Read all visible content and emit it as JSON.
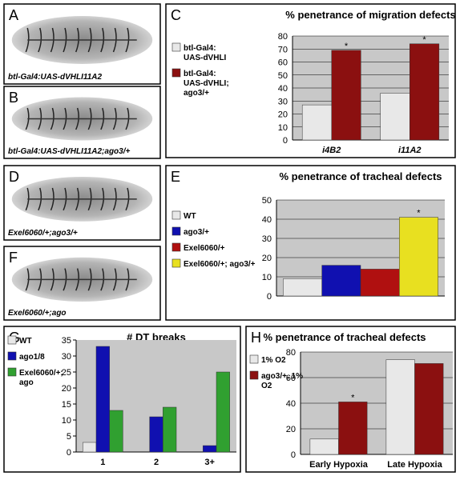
{
  "image_panels": [
    {
      "letter": "A",
      "caption": "btl-Gal4:UAS-dVHLI11A2"
    },
    {
      "letter": "B",
      "caption": "btl-Gal4:UAS-dVHLI11A2;ago3/+"
    },
    {
      "letter": "D",
      "caption": "Exel6060/+;ago3/+"
    },
    {
      "letter": "F",
      "caption": "Exel6060/+;ago"
    }
  ],
  "chart_data": [
    {
      "letter": "C",
      "type": "bar",
      "title": "% penetrance of migration defects",
      "categories": [
        "i4B2",
        "i11A2"
      ],
      "series": [
        {
          "name": "btl-Gal4: UAS-dVHLI",
          "color": "#e8e8e8",
          "values": [
            27,
            36
          ]
        },
        {
          "name": "btl-Gal4: UAS-dVHLI; ago3/+",
          "color": "#8b1010",
          "values": [
            69,
            74
          ]
        }
      ],
      "ylim": [
        0,
        80
      ],
      "yticks": [
        0,
        10,
        20,
        30,
        40,
        50,
        60,
        70,
        80
      ],
      "grid": true,
      "annotations": [
        {
          "text": "*",
          "category": "i4B2",
          "series": "btl-Gal4: UAS-dVHLI; ago3/+"
        },
        {
          "text": "*",
          "category": "i11A2",
          "series": "btl-Gal4: UAS-dVHLI; ago3/+"
        }
      ]
    },
    {
      "letter": "E",
      "type": "bar",
      "title": "% penetrance of tracheal defects",
      "categories": [
        null
      ],
      "series": [
        {
          "name": "WT",
          "color": "#e8e8e8",
          "values": [
            9
          ]
        },
        {
          "name": "ago3/+",
          "color": "#1010b0",
          "values": [
            16
          ]
        },
        {
          "name": "Exel6060/+",
          "color": "#b01010",
          "values": [
            14
          ]
        },
        {
          "name": "Exel6060/+; ago3/+",
          "color": "#e8e020",
          "values": [
            41
          ]
        }
      ],
      "ylim": [
        0,
        50
      ],
      "yticks": [
        0,
        10,
        20,
        30,
        40,
        50
      ],
      "grid": true,
      "annotations": [
        {
          "text": "*",
          "category": null,
          "series": "Exel6060/+; ago3/+"
        }
      ]
    },
    {
      "letter": "G",
      "type": "bar",
      "title": "# DT breaks",
      "categories": [
        "1",
        "2",
        "3+"
      ],
      "series": [
        {
          "name": "WT",
          "color": "#e8e8e8",
          "values": [
            3,
            0,
            0
          ]
        },
        {
          "name": "ago1/8",
          "color": "#1010b0",
          "values": [
            33,
            11,
            2
          ]
        },
        {
          "name": "Exel6060/+; ago",
          "color": "#30a030",
          "values": [
            13,
            14,
            25
          ]
        }
      ],
      "ylim": [
        0,
        35
      ],
      "yticks": [
        0,
        5,
        10,
        15,
        20,
        25,
        30,
        35
      ],
      "grid": false,
      "annotations": []
    },
    {
      "letter": "H",
      "type": "bar",
      "title": "% penetrance of tracheal defects",
      "categories": [
        "Early Hypoxia",
        "Late Hypoxia"
      ],
      "series": [
        {
          "name": "1% O2",
          "color": "#e8e8e8",
          "values": [
            12,
            74
          ]
        },
        {
          "name": "ago3/+, 1% O2",
          "color": "#8b1010",
          "values": [
            41,
            71
          ]
        }
      ],
      "ylim": [
        0,
        80
      ],
      "yticks": [
        0,
        20,
        40,
        60,
        80
      ],
      "grid": true,
      "annotations": [
        {
          "text": "*",
          "category": "Early Hypoxia",
          "series": "ago3/+, 1% O2"
        }
      ]
    }
  ]
}
